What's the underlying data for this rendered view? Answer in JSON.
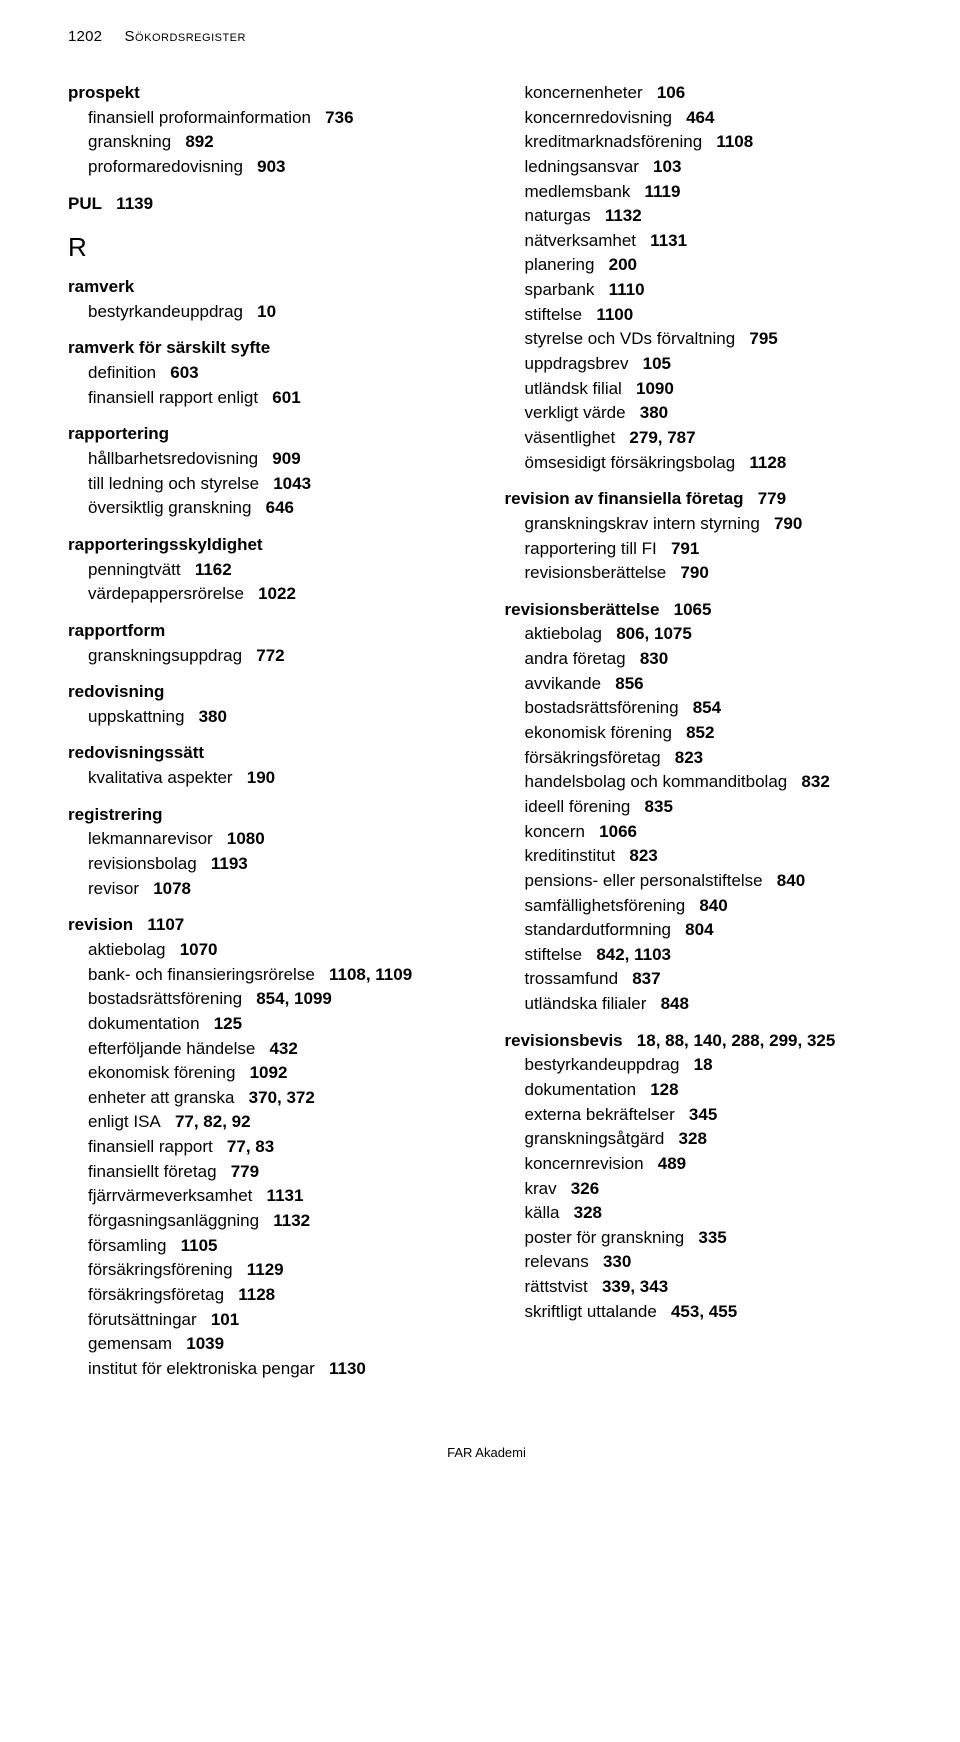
{
  "header": {
    "page_number": "1202",
    "running_title": "Sökordsregister"
  },
  "section_letter": "R",
  "left": [
    {
      "type": "head",
      "label": "prospekt",
      "pages": ""
    },
    {
      "type": "sub",
      "label": "finansiell proformainformation",
      "pages": "736"
    },
    {
      "type": "sub",
      "label": "granskning",
      "pages": "892"
    },
    {
      "type": "sub",
      "label": "proformaredovisning",
      "pages": "903"
    },
    {
      "type": "head",
      "label": "PUL",
      "pages": "1139"
    },
    {
      "type": "letter",
      "label": "R"
    },
    {
      "type": "head",
      "label": "ramverk",
      "pages": ""
    },
    {
      "type": "sub",
      "label": "bestyrkandeuppdrag",
      "pages": "10"
    },
    {
      "type": "head",
      "label": "ramverk för särskilt syfte",
      "pages": ""
    },
    {
      "type": "sub",
      "label": "definition",
      "pages": "603"
    },
    {
      "type": "sub",
      "label": "finansiell rapport enligt",
      "pages": "601"
    },
    {
      "type": "head",
      "label": "rapportering",
      "pages": ""
    },
    {
      "type": "sub",
      "label": "hållbarhetsredovisning",
      "pages": "909"
    },
    {
      "type": "sub",
      "label": "till ledning och styrelse",
      "pages": "1043"
    },
    {
      "type": "sub",
      "label": "översiktlig granskning",
      "pages": "646"
    },
    {
      "type": "head",
      "label": "rapporteringsskyldighet",
      "pages": ""
    },
    {
      "type": "sub",
      "label": "penningtvätt",
      "pages": "1162"
    },
    {
      "type": "sub",
      "label": "värdepappersrörelse",
      "pages": "1022"
    },
    {
      "type": "head",
      "label": "rapportform",
      "pages": ""
    },
    {
      "type": "sub",
      "label": "granskningsuppdrag",
      "pages": "772"
    },
    {
      "type": "head",
      "label": "redovisning",
      "pages": ""
    },
    {
      "type": "sub",
      "label": "uppskattning",
      "pages": "380"
    },
    {
      "type": "head",
      "label": "redovisningssätt",
      "pages": ""
    },
    {
      "type": "sub",
      "label": "kvalitativa aspekter",
      "pages": "190"
    },
    {
      "type": "head",
      "label": "registrering",
      "pages": ""
    },
    {
      "type": "sub",
      "label": "lekmannarevisor",
      "pages": "1080"
    },
    {
      "type": "sub",
      "label": "revisionsbolag",
      "pages": "1193"
    },
    {
      "type": "sub",
      "label": "revisor",
      "pages": "1078"
    },
    {
      "type": "head",
      "label": "revision",
      "pages": "1107"
    },
    {
      "type": "sub",
      "label": "aktiebolag",
      "pages": "1070"
    },
    {
      "type": "sub-wrap",
      "label": "bank- och finansieringsrörelse",
      "pages": "1108, 1109"
    },
    {
      "type": "sub",
      "label": "bostadsrättsförening",
      "pages": "854, 1099"
    },
    {
      "type": "sub",
      "label": "dokumentation",
      "pages": "125"
    },
    {
      "type": "sub",
      "label": "efterföljande händelse",
      "pages": "432"
    },
    {
      "type": "sub",
      "label": "ekonomisk förening",
      "pages": "1092"
    },
    {
      "type": "sub",
      "label": "enheter att granska",
      "pages": "370, 372"
    },
    {
      "type": "sub",
      "label": "enligt ISA",
      "pages": "77, 82, 92"
    },
    {
      "type": "sub",
      "label": "finansiell rapport",
      "pages": "77, 83"
    },
    {
      "type": "sub",
      "label": "finansiellt företag",
      "pages": "779"
    },
    {
      "type": "sub",
      "label": "fjärrvärmeverksamhet",
      "pages": "1131"
    },
    {
      "type": "sub",
      "label": "förgasningsanläggning",
      "pages": "1132"
    },
    {
      "type": "sub",
      "label": "församling",
      "pages": "1105"
    },
    {
      "type": "sub",
      "label": "försäkringsförening",
      "pages": "1129"
    },
    {
      "type": "sub",
      "label": "försäkringsföretag",
      "pages": "1128"
    },
    {
      "type": "sub",
      "label": "förutsättningar",
      "pages": "101"
    },
    {
      "type": "sub",
      "label": "gemensam",
      "pages": "1039"
    },
    {
      "type": "sub-wrap",
      "label": "institut för elektroniska pengar",
      "pages": "1130"
    }
  ],
  "right": [
    {
      "type": "sub",
      "label": "koncernenheter",
      "pages": "106"
    },
    {
      "type": "sub",
      "label": "koncernredovisning",
      "pages": "464"
    },
    {
      "type": "sub",
      "label": "kreditmarknadsförening",
      "pages": "1108"
    },
    {
      "type": "sub",
      "label": "ledningsansvar",
      "pages": "103"
    },
    {
      "type": "sub",
      "label": "medlemsbank",
      "pages": "1119"
    },
    {
      "type": "sub",
      "label": "naturgas",
      "pages": "1132"
    },
    {
      "type": "sub",
      "label": "nätverksamhet",
      "pages": "1131"
    },
    {
      "type": "sub",
      "label": "planering",
      "pages": "200"
    },
    {
      "type": "sub",
      "label": "sparbank",
      "pages": "1110"
    },
    {
      "type": "sub",
      "label": "stiftelse",
      "pages": "1100"
    },
    {
      "type": "sub",
      "label": "styrelse och VDs förvaltning",
      "pages": "795"
    },
    {
      "type": "sub",
      "label": "uppdragsbrev",
      "pages": "105"
    },
    {
      "type": "sub",
      "label": "utländsk filial",
      "pages": "1090"
    },
    {
      "type": "sub",
      "label": "verkligt värde",
      "pages": "380"
    },
    {
      "type": "sub",
      "label": "väsentlighet",
      "pages": "279, 787"
    },
    {
      "type": "sub",
      "label": "ömsesidigt försäkringsbolag",
      "pages": "1128"
    },
    {
      "type": "head",
      "label": "revision av finansiella företag",
      "pages": "779"
    },
    {
      "type": "sub",
      "label": "granskningskrav intern styrning",
      "pages": "790"
    },
    {
      "type": "sub",
      "label": "rapportering till FI",
      "pages": "791"
    },
    {
      "type": "sub",
      "label": "revisionsberättelse",
      "pages": "790"
    },
    {
      "type": "head",
      "label": "revisionsberättelse",
      "pages": "1065"
    },
    {
      "type": "sub",
      "label": "aktiebolag",
      "pages": "806, 1075"
    },
    {
      "type": "sub",
      "label": "andra företag",
      "pages": "830"
    },
    {
      "type": "sub",
      "label": "avvikande",
      "pages": "856"
    },
    {
      "type": "sub",
      "label": "bostadsrättsförening",
      "pages": "854"
    },
    {
      "type": "sub",
      "label": "ekonomisk förening",
      "pages": "852"
    },
    {
      "type": "sub",
      "label": "försäkringsföretag",
      "pages": "823"
    },
    {
      "type": "sub-wrap",
      "label": "handelsbolag och kommanditbolag",
      "pages": "832"
    },
    {
      "type": "sub",
      "label": "ideell förening",
      "pages": "835"
    },
    {
      "type": "sub",
      "label": "koncern",
      "pages": "1066"
    },
    {
      "type": "sub",
      "label": "kreditinstitut",
      "pages": "823"
    },
    {
      "type": "sub-wrap",
      "label": "pensions- eller personalstiftelse",
      "pages": "840"
    },
    {
      "type": "sub",
      "label": "samfällighetsförening",
      "pages": "840"
    },
    {
      "type": "sub",
      "label": "standardutformning",
      "pages": "804"
    },
    {
      "type": "sub",
      "label": "stiftelse",
      "pages": "842, 1103"
    },
    {
      "type": "sub",
      "label": "trossamfund",
      "pages": "837"
    },
    {
      "type": "sub",
      "label": "utländska filialer",
      "pages": "848"
    },
    {
      "type": "head-wrap",
      "label": "revisionsbevis",
      "pages": "18, 88, 140, 288, 299, 325"
    },
    {
      "type": "sub",
      "label": "bestyrkandeuppdrag",
      "pages": "18"
    },
    {
      "type": "sub",
      "label": "dokumentation",
      "pages": "128"
    },
    {
      "type": "sub",
      "label": "externa bekräftelser",
      "pages": "345"
    },
    {
      "type": "sub",
      "label": "granskningsåtgärd",
      "pages": "328"
    },
    {
      "type": "sub",
      "label": "koncernrevision",
      "pages": "489"
    },
    {
      "type": "sub",
      "label": "krav",
      "pages": "326"
    },
    {
      "type": "sub",
      "label": "källa",
      "pages": "328"
    },
    {
      "type": "sub",
      "label": "poster för granskning",
      "pages": "335"
    },
    {
      "type": "sub",
      "label": "relevans",
      "pages": "330"
    },
    {
      "type": "sub",
      "label": "rättstvist",
      "pages": "339, 343"
    },
    {
      "type": "sub",
      "label": "skriftligt uttalande",
      "pages": "453, 455"
    }
  ],
  "footer": "FAR Akademi"
}
